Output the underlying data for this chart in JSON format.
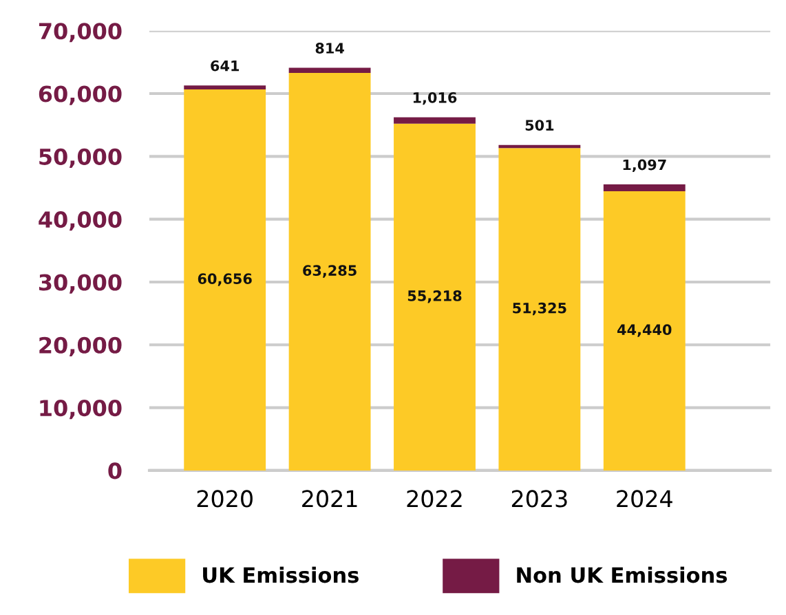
{
  "chart_data": {
    "type": "bar",
    "stacked": true,
    "categories": [
      "2020",
      "2021",
      "2022",
      "2023",
      "2024"
    ],
    "series": [
      {
        "name": "UK Emissions",
        "color": "#fdca26",
        "values": [
          60656,
          63285,
          55218,
          51325,
          44440
        ],
        "value_labels": [
          "60,656",
          "63,285",
          "55,218",
          "51,325",
          "44,440"
        ]
      },
      {
        "name": "Non UK Emissions",
        "color": "#751b45",
        "values": [
          641,
          814,
          1016,
          501,
          1097
        ],
        "value_labels": [
          "641",
          "814",
          "1,016",
          "501",
          "1,097"
        ]
      }
    ],
    "ylim": [
      0,
      70000
    ],
    "yticks": [
      {
        "value": 0,
        "label": "0"
      },
      {
        "value": 10000,
        "label": "10,000"
      },
      {
        "value": 20000,
        "label": "20,000"
      },
      {
        "value": 30000,
        "label": "30,000"
      },
      {
        "value": 40000,
        "label": "40,000"
      },
      {
        "value": 50000,
        "label": "50,000"
      },
      {
        "value": 60000,
        "label": "60,000"
      },
      {
        "value": 70000,
        "label": "70,000"
      }
    ],
    "grid": "y",
    "legend": "bottom"
  }
}
